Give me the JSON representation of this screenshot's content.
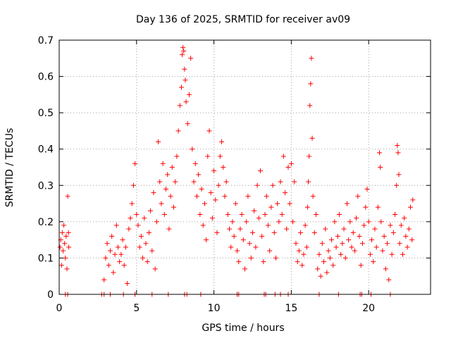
{
  "chart_data": {
    "type": "scatter",
    "title": "Day 136 of 2025, SRMTID for receiver av09",
    "xlabel": "GPS time / hours",
    "ylabel": "SRMTID / TECUs",
    "xlim": [
      0,
      24
    ],
    "ylim": [
      0,
      0.7
    ],
    "xticks": [
      0,
      5,
      10,
      15,
      20
    ],
    "yticks": [
      0,
      0.1,
      0.2,
      0.3,
      0.4,
      0.5,
      0.6,
      0.7
    ],
    "grid": true,
    "marker": "+",
    "color": "#ff0000",
    "series": [
      {
        "name": "SRMTID av09",
        "points": [
          [
            0.05,
            0.13
          ],
          [
            0.1,
            0.15
          ],
          [
            0.15,
            0.08
          ],
          [
            0.2,
            0.17
          ],
          [
            0.25,
            0.12
          ],
          [
            0.3,
            0.19
          ],
          [
            0.35,
            0.14
          ],
          [
            0.4,
            0.1
          ],
          [
            0.45,
            0.16
          ],
          [
            0.5,
            0.07
          ],
          [
            0.55,
            0.27
          ],
          [
            0.6,
            0.17
          ],
          [
            0.62,
            0.13
          ],
          [
            2.9,
            0.04
          ],
          [
            3.0,
            0.1
          ],
          [
            3.1,
            0.14
          ],
          [
            3.2,
            0.08
          ],
          [
            3.3,
            0.12
          ],
          [
            3.4,
            0.16
          ],
          [
            3.5,
            0.06
          ],
          [
            3.6,
            0.11
          ],
          [
            3.7,
            0.19
          ],
          [
            3.8,
            0.13
          ],
          [
            3.9,
            0.09
          ],
          [
            4.0,
            0.11
          ],
          [
            4.1,
            0.15
          ],
          [
            4.2,
            0.08
          ],
          [
            4.3,
            0.13
          ],
          [
            4.4,
            0.03
          ],
          [
            4.5,
            0.18
          ],
          [
            4.6,
            0.21
          ],
          [
            4.7,
            0.25
          ],
          [
            4.8,
            0.3
          ],
          [
            4.9,
            0.36
          ],
          [
            5.0,
            0.22
          ],
          [
            5.1,
            0.19
          ],
          [
            5.2,
            0.13
          ],
          [
            5.3,
            0.16
          ],
          [
            5.4,
            0.1
          ],
          [
            5.5,
            0.21
          ],
          [
            5.6,
            0.14
          ],
          [
            5.7,
            0.09
          ],
          [
            5.8,
            0.17
          ],
          [
            5.9,
            0.23
          ],
          [
            6.0,
            0.12
          ],
          [
            6.1,
            0.28
          ],
          [
            6.2,
            0.07
          ],
          [
            6.3,
            0.2
          ],
          [
            6.4,
            0.42
          ],
          [
            6.5,
            0.31
          ],
          [
            6.6,
            0.25
          ],
          [
            6.7,
            0.36
          ],
          [
            6.8,
            0.22
          ],
          [
            6.9,
            0.29
          ],
          [
            7.0,
            0.33
          ],
          [
            7.1,
            0.18
          ],
          [
            7.2,
            0.27
          ],
          [
            7.3,
            0.35
          ],
          [
            7.4,
            0.24
          ],
          [
            7.5,
            0.31
          ],
          [
            7.6,
            0.38
          ],
          [
            7.7,
            0.45
          ],
          [
            7.8,
            0.52
          ],
          [
            7.9,
            0.57
          ],
          [
            7.95,
            0.66
          ],
          [
            8.0,
            0.68
          ],
          [
            8.05,
            0.67
          ],
          [
            8.1,
            0.62
          ],
          [
            8.15,
            0.59
          ],
          [
            8.2,
            0.53
          ],
          [
            8.3,
            0.47
          ],
          [
            8.4,
            0.55
          ],
          [
            8.5,
            0.65
          ],
          [
            8.6,
            0.4
          ],
          [
            8.7,
            0.31
          ],
          [
            8.8,
            0.36
          ],
          [
            8.9,
            0.27
          ],
          [
            9.0,
            0.33
          ],
          [
            9.1,
            0.22
          ],
          [
            9.2,
            0.29
          ],
          [
            9.3,
            0.19
          ],
          [
            9.4,
            0.25
          ],
          [
            9.5,
            0.15
          ],
          [
            9.6,
            0.38
          ],
          [
            9.7,
            0.45
          ],
          [
            9.8,
            0.28
          ],
          [
            9.9,
            0.21
          ],
          [
            10.0,
            0.34
          ],
          [
            10.1,
            0.26
          ],
          [
            10.2,
            0.17
          ],
          [
            10.3,
            0.3
          ],
          [
            10.4,
            0.38
          ],
          [
            10.5,
            0.42
          ],
          [
            10.6,
            0.35
          ],
          [
            10.7,
            0.27
          ],
          [
            10.8,
            0.31
          ],
          [
            10.9,
            0.22
          ],
          [
            11.0,
            0.18
          ],
          [
            11.1,
            0.13
          ],
          [
            11.2,
            0.2
          ],
          [
            11.3,
            0.16
          ],
          [
            11.4,
            0.25
          ],
          [
            11.5,
            0.12
          ],
          [
            11.6,
            0.09
          ],
          [
            11.7,
            0.18
          ],
          [
            11.8,
            0.22
          ],
          [
            11.9,
            0.15
          ],
          [
            12.0,
            0.07
          ],
          [
            12.1,
            0.2
          ],
          [
            12.2,
            0.27
          ],
          [
            12.3,
            0.14
          ],
          [
            12.4,
            0.1
          ],
          [
            12.5,
            0.17
          ],
          [
            12.6,
            0.23
          ],
          [
            12.7,
            0.13
          ],
          [
            12.8,
            0.3
          ],
          [
            12.9,
            0.21
          ],
          [
            13.0,
            0.34
          ],
          [
            13.1,
            0.16
          ],
          [
            13.2,
            0.09
          ],
          [
            13.3,
            0.22
          ],
          [
            13.4,
            0.27
          ],
          [
            13.5,
            0.19
          ],
          [
            13.6,
            0.12
          ],
          [
            13.7,
            0.24
          ],
          [
            13.8,
            0.3
          ],
          [
            13.9,
            0.17
          ],
          [
            14.0,
            0.1
          ],
          [
            14.1,
            0.25
          ],
          [
            14.2,
            0.2
          ],
          [
            14.3,
            0.31
          ],
          [
            14.4,
            0.22
          ],
          [
            14.5,
            0.38
          ],
          [
            14.6,
            0.28
          ],
          [
            14.7,
            0.18
          ],
          [
            14.8,
            0.35
          ],
          [
            14.9,
            0.25
          ],
          [
            15.0,
            0.36
          ],
          [
            15.1,
            0.2
          ],
          [
            15.2,
            0.31
          ],
          [
            15.3,
            0.14
          ],
          [
            15.4,
            0.09
          ],
          [
            15.5,
            0.12
          ],
          [
            15.6,
            0.17
          ],
          [
            15.7,
            0.08
          ],
          [
            15.8,
            0.11
          ],
          [
            15.9,
            0.19
          ],
          [
            16.0,
            0.13
          ],
          [
            16.05,
            0.24
          ],
          [
            16.1,
            0.31
          ],
          [
            16.15,
            0.38
          ],
          [
            16.2,
            0.52
          ],
          [
            16.25,
            0.58
          ],
          [
            16.3,
            0.65
          ],
          [
            16.35,
            0.43
          ],
          [
            16.4,
            0.27
          ],
          [
            16.5,
            0.17
          ],
          [
            16.6,
            0.22
          ],
          [
            16.7,
            0.07
          ],
          [
            16.8,
            0.11
          ],
          [
            16.9,
            0.05
          ],
          [
            17.0,
            0.14
          ],
          [
            17.1,
            0.09
          ],
          [
            17.2,
            0.18
          ],
          [
            17.3,
            0.06
          ],
          [
            17.4,
            0.12
          ],
          [
            17.5,
            0.1
          ],
          [
            17.6,
            0.15
          ],
          [
            17.7,
            0.08
          ],
          [
            17.8,
            0.2
          ],
          [
            17.9,
            0.13
          ],
          [
            18.0,
            0.16
          ],
          [
            18.1,
            0.22
          ],
          [
            18.2,
            0.11
          ],
          [
            18.3,
            0.14
          ],
          [
            18.4,
            0.18
          ],
          [
            18.5,
            0.1
          ],
          [
            18.6,
            0.25
          ],
          [
            18.7,
            0.15
          ],
          [
            18.8,
            0.2
          ],
          [
            18.9,
            0.13
          ],
          [
            19.0,
            0.17
          ],
          [
            19.1,
            0.12
          ],
          [
            19.2,
            0.21
          ],
          [
            19.3,
            0.27
          ],
          [
            19.4,
            0.16
          ],
          [
            19.5,
            0.08
          ],
          [
            19.6,
            0.14
          ],
          [
            19.7,
            0.19
          ],
          [
            19.8,
            0.24
          ],
          [
            19.9,
            0.29
          ],
          [
            20.0,
            0.2
          ],
          [
            20.1,
            0.11
          ],
          [
            20.2,
            0.15
          ],
          [
            20.3,
            0.09
          ],
          [
            20.4,
            0.18
          ],
          [
            20.5,
            0.13
          ],
          [
            20.6,
            0.24
          ],
          [
            20.7,
            0.39
          ],
          [
            20.75,
            0.35
          ],
          [
            20.8,
            0.2
          ],
          [
            20.9,
            0.12
          ],
          [
            21.0,
            0.16
          ],
          [
            21.1,
            0.07
          ],
          [
            21.2,
            0.14
          ],
          [
            21.3,
            0.04
          ],
          [
            21.4,
            0.19
          ],
          [
            21.5,
            0.11
          ],
          [
            21.6,
            0.17
          ],
          [
            21.7,
            0.22
          ],
          [
            21.8,
            0.3
          ],
          [
            21.85,
            0.41
          ],
          [
            21.9,
            0.39
          ],
          [
            21.95,
            0.33
          ],
          [
            22.0,
            0.14
          ],
          [
            22.1,
            0.19
          ],
          [
            22.2,
            0.11
          ],
          [
            22.3,
            0.21
          ],
          [
            22.4,
            0.16
          ],
          [
            22.5,
            0.13
          ],
          [
            22.6,
            0.18
          ],
          [
            22.7,
            0.24
          ],
          [
            22.8,
            0.15
          ],
          [
            22.85,
            0.26
          ]
        ]
      }
    ],
    "zero_markers_x": [
      0.4,
      0.55,
      2.75,
      2.9,
      3.3,
      4.15,
      4.9,
      6.0,
      7.05,
      8.1,
      8.25,
      9.15,
      11.5,
      11.6,
      13.25,
      13.35,
      13.95,
      14.3,
      14.8,
      16.8,
      18.05,
      19.45,
      19.55,
      20.15,
      21.4
    ]
  }
}
